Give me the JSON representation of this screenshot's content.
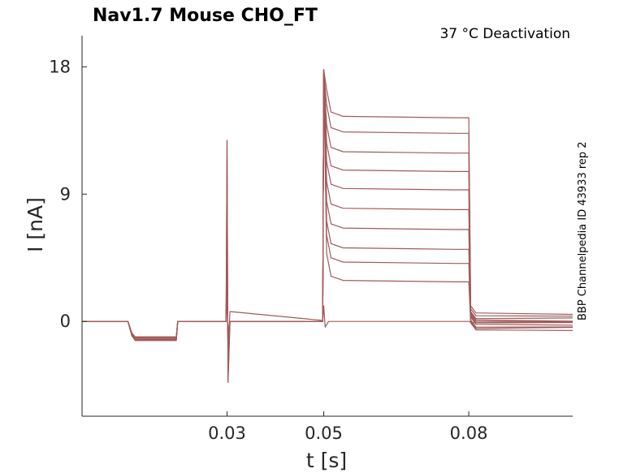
{
  "chart_data": {
    "type": "line",
    "title": "Nav1.7  Mouse  CHO_FT",
    "subtitle": "37 °C  Deactivation",
    "side_label": "BBP Channelpedia ID 43933 rep 2",
    "xlabel": "t [s]",
    "ylabel": "I [nA]",
    "xlim": [
      0.0,
      0.1015
    ],
    "ylim": [
      -6.7,
      20.2
    ],
    "x_ticks": [
      0.03,
      0.05,
      0.08
    ],
    "x_tick_labels": [
      "0.03",
      "0.05",
      "0.08"
    ],
    "y_ticks": [
      0,
      9,
      18
    ],
    "y_tick_labels": [
      "0",
      "9",
      "18"
    ],
    "grid": false,
    "color": "#a05a5a",
    "protocol": {
      "hold_level": 0.0,
      "step1": [
        0.0095,
        0.0195
      ],
      "step1_levels": [
        -1.1,
        -1.35
      ],
      "spike_time": 0.03,
      "prepulse": [
        0.05,
        0.08
      ],
      "peak": 17.8,
      "tail_end": 0.1015
    },
    "series": [
      {
        "values": [
          14.4,
          0.6
        ]
      },
      {
        "values": [
          13.3,
          0.4
        ]
      },
      {
        "values": [
          11.9,
          0.2
        ]
      },
      {
        "values": [
          10.6,
          0.1
        ]
      },
      {
        "values": [
          9.3,
          0.0
        ]
      },
      {
        "values": [
          7.9,
          -0.1
        ]
      },
      {
        "values": [
          6.5,
          -0.2
        ]
      },
      {
        "values": [
          5.1,
          -0.4
        ]
      },
      {
        "values": [
          4.1,
          -0.5
        ]
      },
      {
        "values": [
          2.8,
          -0.6
        ]
      },
      {
        "values": [
          0.0,
          -0.1
        ]
      }
    ]
  }
}
